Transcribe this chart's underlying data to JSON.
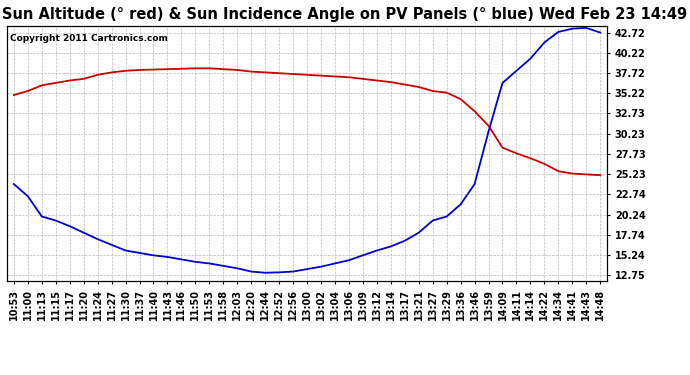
{
  "title": "Sun Altitude (° red) & Sun Incidence Angle on PV Panels (° blue) Wed Feb 23 14:49",
  "copyright_text": "Copyright 2011 Cartronics.com",
  "yticks": [
    12.75,
    15.24,
    17.74,
    20.24,
    22.74,
    25.23,
    27.73,
    30.23,
    32.73,
    35.22,
    37.72,
    40.22,
    42.72
  ],
  "ymin": 12.0,
  "ymax": 43.5,
  "xtick_labels": [
    "10:53",
    "11:00",
    "11:13",
    "11:15",
    "11:17",
    "11:20",
    "11:24",
    "11:27",
    "11:30",
    "11:37",
    "11:40",
    "11:43",
    "11:46",
    "11:50",
    "11:53",
    "11:58",
    "12:03",
    "12:20",
    "12:44",
    "12:52",
    "12:56",
    "13:00",
    "13:02",
    "13:04",
    "13:06",
    "13:09",
    "13:12",
    "13:14",
    "13:17",
    "13:21",
    "13:27",
    "13:29",
    "13:36",
    "13:46",
    "13:59",
    "14:09",
    "14:11",
    "14:14",
    "14:22",
    "14:34",
    "14:41",
    "14:43",
    "14:48"
  ],
  "red_y": [
    35.0,
    35.5,
    36.2,
    36.5,
    36.8,
    37.0,
    37.5,
    37.8,
    38.0,
    38.1,
    38.15,
    38.2,
    38.25,
    38.3,
    38.3,
    38.2,
    38.1,
    37.9,
    37.8,
    37.7,
    37.6,
    37.5,
    37.4,
    37.3,
    37.2,
    37.0,
    36.8,
    36.6,
    36.3,
    36.0,
    35.5,
    35.3,
    34.5,
    33.0,
    31.2,
    28.5,
    27.8,
    27.2,
    26.5,
    25.6,
    25.3,
    25.2,
    25.1
  ],
  "blue_y": [
    24.0,
    22.5,
    20.0,
    19.5,
    18.8,
    18.0,
    17.2,
    16.5,
    15.8,
    15.5,
    15.2,
    15.0,
    14.7,
    14.4,
    14.2,
    13.9,
    13.6,
    13.2,
    13.05,
    13.1,
    13.2,
    13.5,
    13.8,
    14.2,
    14.6,
    15.2,
    15.8,
    16.3,
    17.0,
    18.0,
    19.5,
    20.0,
    21.5,
    24.0,
    30.5,
    36.5,
    38.0,
    39.5,
    41.5,
    42.8,
    43.2,
    43.3,
    42.72
  ],
  "red_color": "#cc0000",
  "blue_color": "#0000cc",
  "bg_color": "#ffffff",
  "grid_color": "#aaaaaa",
  "title_fontsize": 10.5,
  "tick_fontsize": 7,
  "copyright_fontsize": 6.5
}
